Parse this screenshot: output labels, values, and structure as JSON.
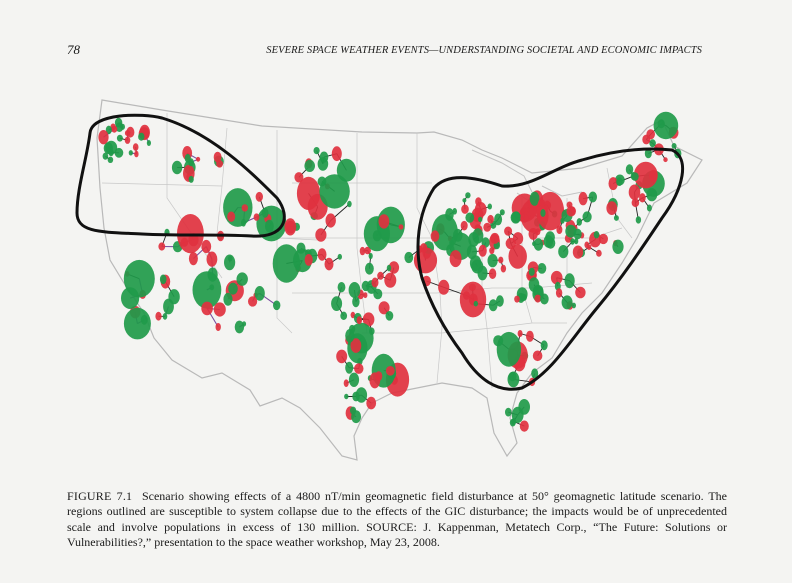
{
  "header": {
    "page_number": "78",
    "running_title": "SEVERE SPACE WEATHER EVENTS—UNDERSTANDING SOCIETAL AND ECONOMIC IMPACTS"
  },
  "figure": {
    "colors": {
      "green_node": "#1f9a4a",
      "red_node": "#e0313f",
      "line": "#222222",
      "purple_line": "#7a4fa0",
      "outline": "#111111",
      "border": "#bdbdbd"
    },
    "icon": "us-power-grid-map"
  },
  "caption": {
    "label": "FIGURE 7.1",
    "text": "Scenario showing effects of a 4800 nT/min geomagnetic field disturbance at 50° geomagnetic latitude scenario. The regions outlined are susceptible to system collapse due to the effects of the GIC disturbance; the impacts would be of unprecedented scale and involve populations in excess of 130 million. SOURCE: J. Kappenman, Metatech Corp., “The Future: Solutions or Vulnerabilities?,” presentation to the space weather workshop, May 23, 2008."
  }
}
